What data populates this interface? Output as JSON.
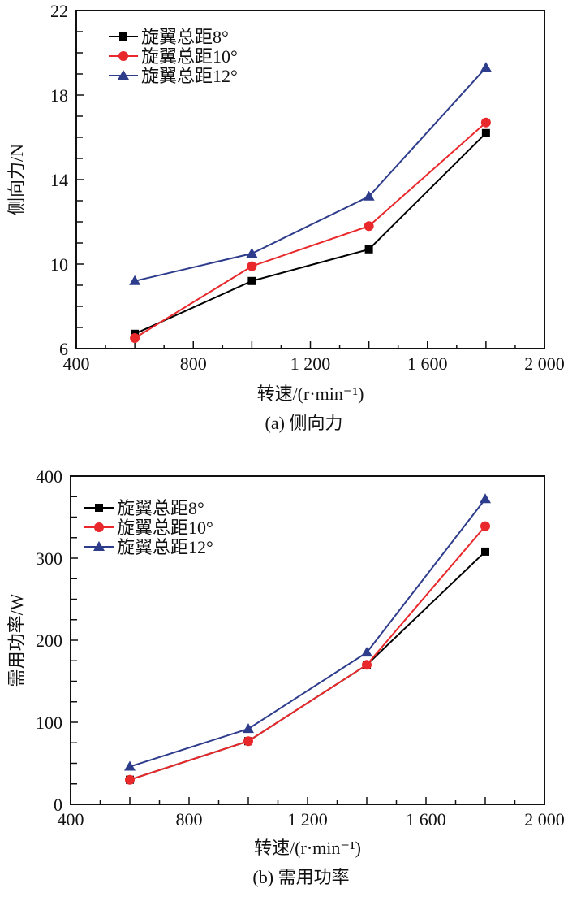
{
  "chart_data": [
    {
      "type": "line",
      "caption": "(a) 侧向力",
      "title": "",
      "xlabel": "转速/(r·min⁻¹)",
      "ylabel": "侧向力/N",
      "xlim": [
        400,
        2000
      ],
      "ylim": [
        6,
        22
      ],
      "xticks": [
        400,
        800,
        1200,
        1600,
        2000
      ],
      "xtick_labels": [
        "400",
        "800",
        "1 200",
        "1 600",
        "2 000"
      ],
      "yticks": [
        6,
        10,
        14,
        18,
        22
      ],
      "ytick_labels": [
        "6",
        "10",
        "14",
        "18",
        "22"
      ],
      "grid": false,
      "legend_position": "top-left",
      "x": [
        600,
        1000,
        1400,
        1800
      ],
      "series": [
        {
          "name": "旋翼总距8°",
          "color": "#000000",
          "marker": "square",
          "values": [
            6.7,
            9.2,
            10.7,
            16.2
          ]
        },
        {
          "name": "旋翼总距10°",
          "color": "#e8282b",
          "marker": "circle",
          "values": [
            6.5,
            9.9,
            11.8,
            16.7
          ]
        },
        {
          "name": "旋翼总距12°",
          "color": "#2e3c8c",
          "marker": "triangle",
          "values": [
            9.2,
            10.5,
            13.2,
            19.3
          ]
        }
      ]
    },
    {
      "type": "line",
      "caption": "(b) 需用功率",
      "title": "",
      "xlabel": "转速/(r·min⁻¹)",
      "ylabel": "需用功率/W",
      "xlim": [
        400,
        2000
      ],
      "ylim": [
        0,
        400
      ],
      "xticks": [
        400,
        800,
        1200,
        1600,
        2000
      ],
      "xtick_labels": [
        "400",
        "800",
        "1 200",
        "1 600",
        "2 000"
      ],
      "yticks": [
        0,
        100,
        200,
        300,
        400
      ],
      "ytick_labels": [
        "0",
        "100",
        "200",
        "300",
        "400"
      ],
      "grid": false,
      "legend_position": "top-left",
      "x": [
        600,
        1000,
        1400,
        1800
      ],
      "series": [
        {
          "name": "旋翼总距8°",
          "color": "#000000",
          "marker": "square",
          "values": [
            30,
            77,
            170,
            308
          ]
        },
        {
          "name": "旋翼总距10°",
          "color": "#e8282b",
          "marker": "circle",
          "values": [
            30,
            77,
            170,
            339
          ]
        },
        {
          "name": "旋翼总距12°",
          "color": "#2e3c8c",
          "marker": "triangle",
          "values": [
            46,
            92,
            185,
            372
          ]
        }
      ]
    }
  ]
}
